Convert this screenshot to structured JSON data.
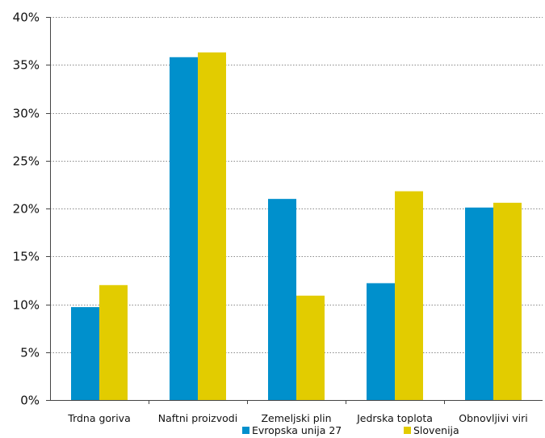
{
  "chart_data": {
    "type": "bar",
    "title": "",
    "xlabel": "",
    "ylabel": "",
    "ylim": [
      0,
      40
    ],
    "yticks": [
      "0%",
      "5%",
      "10%",
      "15%",
      "20%",
      "25%",
      "30%",
      "35%",
      "40%"
    ],
    "ytick_values": [
      0,
      5,
      10,
      15,
      20,
      25,
      30,
      35,
      40
    ],
    "grid": true,
    "legend_position": "bottom",
    "categories": [
      "Trdna goriva",
      "Naftni proizvodi",
      "Zemeljski plin",
      "Jedrska toplota",
      "Obnovljivi viri"
    ],
    "series": [
      {
        "name": "Evropska unija 27",
        "color": "#0090CC",
        "values": [
          9.7,
          35.8,
          21.0,
          12.2,
          20.1
        ]
      },
      {
        "name": "Slovenija",
        "color": "#E2CC00",
        "values": [
          12.0,
          36.3,
          10.9,
          21.8,
          20.6
        ]
      }
    ]
  }
}
